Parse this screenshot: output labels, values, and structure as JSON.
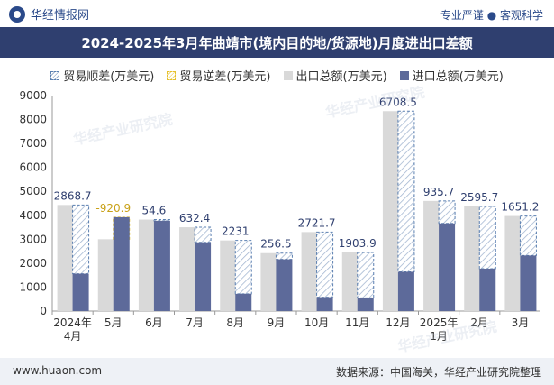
{
  "header": {
    "brand": "华经情报网",
    "tagline": "专业严谨 ● 客观科学"
  },
  "footer": {
    "site": "www.huaon.com",
    "source": "数据来源：中国海关，华经产业研究院整理"
  },
  "watermarks": [
    "华经产业研究院",
    "华经产业研究院",
    "华经产业研究院"
  ],
  "colors": {
    "export": "#d9d9d9",
    "import": "#5d6a9a",
    "surplus": "#5a7fb0",
    "deficit": "#e6c12d",
    "title_bg": "#2f3f6f"
  },
  "chart_data": {
    "type": "bar",
    "title": "2024-2025年3月年曲靖市(境内目的地/货源地)月度进出口差额",
    "legend": [
      "贸易顺差(万美元)",
      "贸易逆差(万美元)",
      "出口总额(万美元)",
      "进口总额(万美元)"
    ],
    "legend_position": "top",
    "categories": [
      "2024年\n4月",
      "5月",
      "6月",
      "7月",
      "8月",
      "9月",
      "10月",
      "11月",
      "12月",
      "2025年\n1月",
      "2月",
      "3月"
    ],
    "ylim": [
      0,
      9000
    ],
    "yticks": [
      0,
      1000,
      2000,
      3000,
      4000,
      5000,
      6000,
      7000,
      8000,
      9000
    ],
    "series": [
      {
        "name": "出口总额(万美元)",
        "values": [
          4430,
          3000,
          3820,
          3500,
          2950,
          2420,
          3300,
          2450,
          8350,
          4600,
          4370,
          3970
        ]
      },
      {
        "name": "进口总额(万美元)",
        "values": [
          1560,
          3920,
          3770,
          2870,
          720,
          2160,
          580,
          550,
          1640,
          3660,
          1770,
          2320
        ]
      }
    ],
    "balance_labels": [
      "2868.7",
      "-920.9",
      "54.6",
      "632.4",
      "2231",
      "256.5",
      "2721.7",
      "1903.9",
      "6708.5",
      "935.7",
      "2595.7",
      "1651.2"
    ],
    "grid": false
  }
}
